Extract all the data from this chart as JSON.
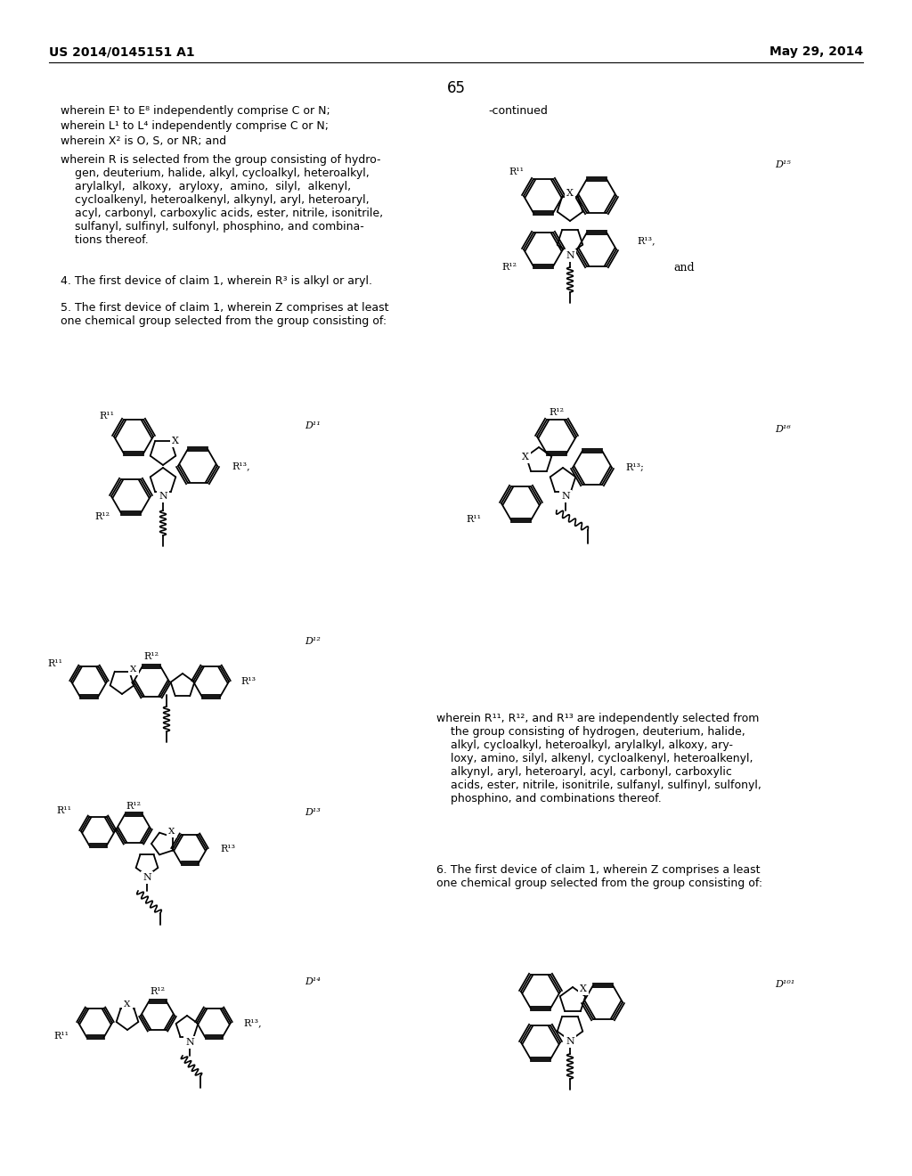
{
  "background_color": "#ffffff",
  "header_left": "US 2014/0145151 A1",
  "header_right": "May 29, 2014",
  "page_number": "65"
}
